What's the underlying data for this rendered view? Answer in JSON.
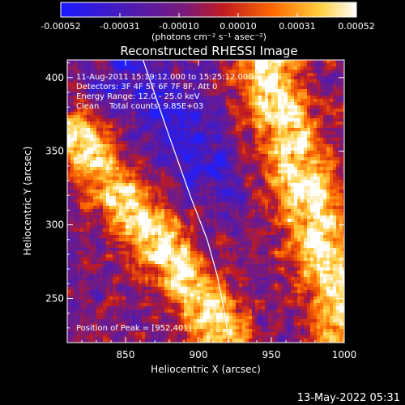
{
  "colorbar": {
    "ticks": [
      "-0.00052",
      "-0.00031",
      "-0.00010",
      "0.00010",
      "0.00031",
      "0.00052"
    ],
    "unit_label": "(photons cm⁻² s⁻¹ asec⁻²)",
    "colors": [
      "#1a1aff",
      "#5a1aa0",
      "#8a1a6a",
      "#d01a10",
      "#ff8a00",
      "#ffe060",
      "#ffffff"
    ]
  },
  "chart_data": {
    "type": "heatmap",
    "title": "Reconstructed RHESSI Image",
    "xlabel": "Heliocentric X (arcsec)",
    "ylabel": "Heliocentric Y (arcsec)",
    "xlim": [
      810,
      1000
    ],
    "ylim": [
      220,
      412
    ],
    "xticks": [
      850,
      900,
      950,
      1000
    ],
    "yticks": [
      250,
      300,
      350,
      400
    ],
    "annotations": [
      "11-Aug-2011 15:19:12.000 to 15:25:12.000",
      "Detectors: 3F 4F 5F 6F 7F 8F, Att 0",
      "Energy Range: 12.0 - 25.0 keV",
      "Clean    Total counts: 9.85E+03"
    ],
    "peak_label": "Position of Peak = [952,401]",
    "peak": [
      952,
      401
    ],
    "limb_curve": [
      [
        862,
        412
      ],
      [
        880,
        360
      ],
      [
        895,
        318
      ],
      [
        906,
        290
      ],
      [
        913,
        265
      ],
      [
        918,
        240
      ],
      [
        921,
        220
      ]
    ]
  },
  "footer": {
    "timestamp": "13-May-2022 05:31"
  }
}
